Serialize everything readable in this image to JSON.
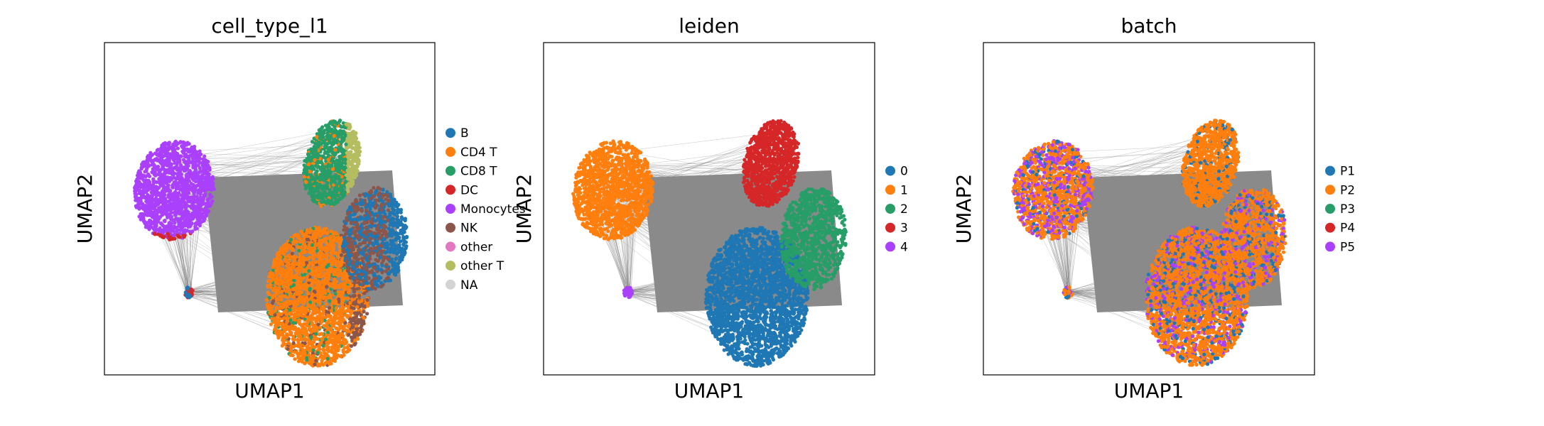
{
  "chart_data": [
    {
      "type": "scatter",
      "title": "cell_type_l1",
      "xlabel": "UMAP1",
      "ylabel": "UMAP2",
      "grid": false,
      "legend_placement": "right",
      "series": [
        {
          "name": "B",
          "color": "#1f77b4"
        },
        {
          "name": "CD4 T",
          "color": "#ff7f0e"
        },
        {
          "name": "CD8 T",
          "color": "#279e68"
        },
        {
          "name": "DC",
          "color": "#d62728"
        },
        {
          "name": "Monocytes",
          "color": "#aa40fc"
        },
        {
          "name": "NK",
          "color": "#8c564b"
        },
        {
          "name": "other",
          "color": "#e377c2"
        },
        {
          "name": "other T",
          "color": "#b5bd61"
        },
        {
          "name": "NA",
          "color": "#d3d3d3"
        }
      ]
    },
    {
      "type": "scatter",
      "title": "leiden",
      "xlabel": "UMAP1",
      "ylabel": "UMAP2",
      "grid": false,
      "legend_placement": "right",
      "series": [
        {
          "name": "0",
          "color": "#1f77b4"
        },
        {
          "name": "1",
          "color": "#ff7f0e"
        },
        {
          "name": "2",
          "color": "#279e68"
        },
        {
          "name": "3",
          "color": "#d62728"
        },
        {
          "name": "4",
          "color": "#aa40fc"
        }
      ]
    },
    {
      "type": "scatter",
      "title": "batch",
      "xlabel": "UMAP1",
      "ylabel": "UMAP2",
      "grid": false,
      "legend_placement": "right",
      "series": [
        {
          "name": "P1",
          "color": "#1f77b4"
        },
        {
          "name": "P2",
          "color": "#ff7f0e"
        },
        {
          "name": "P3",
          "color": "#279e68"
        },
        {
          "name": "P4",
          "color": "#d62728"
        },
        {
          "name": "P5",
          "color": "#aa40fc"
        }
      ]
    }
  ]
}
